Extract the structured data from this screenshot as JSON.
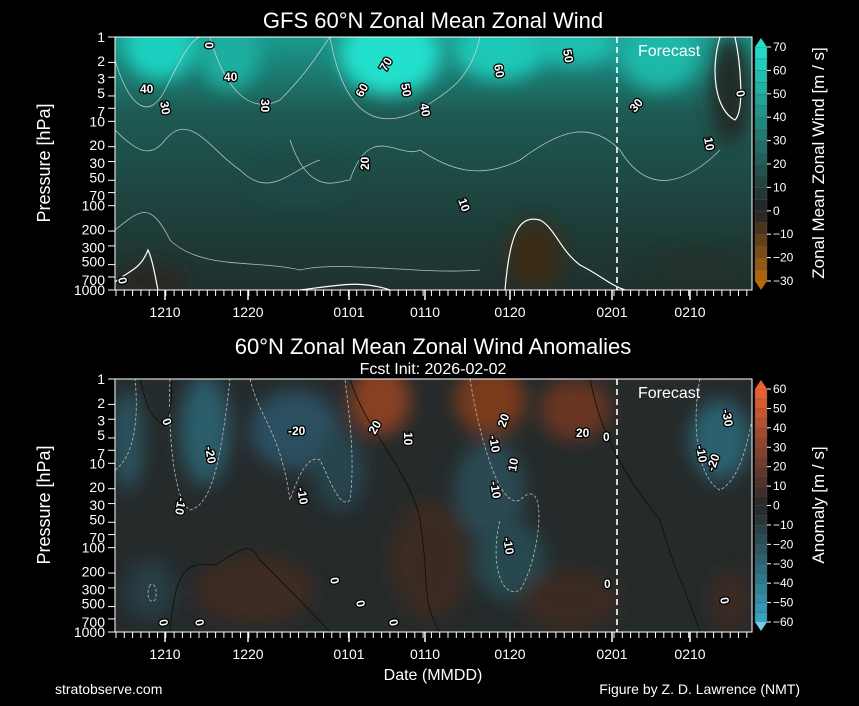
{
  "chart_data": [
    {
      "type": "heatmap",
      "title": "GFS 60°N Zonal Mean Zonal Wind",
      "xlabel": "",
      "ylabel": "Pressure [hPa]",
      "x_tick_labels": [
        "1210",
        "1220",
        "0101",
        "0110",
        "0120",
        "0201",
        "0210"
      ],
      "y_ticks": [
        1,
        2,
        3,
        5,
        7,
        10,
        20,
        30,
        50,
        70,
        100,
        200,
        300,
        500,
        700,
        1000
      ],
      "ylim": [
        1000,
        1
      ],
      "yscale": "log",
      "forecast_label": "Forecast",
      "colorbar": {
        "label": "Zonal Mean Zonal Wind [m / s]",
        "ticks": [
          70,
          60,
          50,
          40,
          30,
          20,
          10,
          0,
          -10,
          -20,
          -30
        ],
        "range": [
          -30,
          70
        ],
        "step": 5,
        "low_color": "#b86a08",
        "zero_color": "#222222",
        "high_color": "#20e0cc"
      },
      "contour_labels": [
        "0",
        "40",
        "30",
        "40",
        "30",
        "60",
        "70",
        "50",
        "40",
        "20",
        "10",
        "60",
        "50",
        "30",
        "0",
        "10",
        "0"
      ]
    },
    {
      "type": "heatmap",
      "title": "60°N Zonal Mean Zonal Wind Anomalies",
      "subtitle": "Fcst Init: 2026-02-02",
      "xlabel": "Date (MMDD)",
      "ylabel": "Pressure [hPa]",
      "x_tick_labels": [
        "1210",
        "1220",
        "0101",
        "0110",
        "0120",
        "0201",
        "0210"
      ],
      "y_ticks": [
        1,
        2,
        3,
        5,
        7,
        10,
        20,
        30,
        50,
        70,
        100,
        200,
        300,
        500,
        700,
        1000
      ],
      "ylim": [
        1000,
        1
      ],
      "yscale": "log",
      "forecast_label": "Forecast",
      "colorbar": {
        "label": "Anomaly [m / s]",
        "ticks": [
          60,
          50,
          40,
          30,
          20,
          10,
          0,
          -10,
          -20,
          -30,
          -40,
          -50,
          -60
        ],
        "range": [
          -60,
          60
        ],
        "step": 5,
        "low_color": "#35a8c8",
        "zero_color": "#262626",
        "high_color": "#f06030"
      },
      "contour_labels": [
        "0",
        "-20",
        "-10",
        "-20",
        "-10",
        "20",
        "10",
        "20",
        "10",
        "-10",
        "-10",
        "-10",
        "20",
        "0",
        "-10",
        "-20",
        "-30",
        "0",
        "0",
        "0",
        "0",
        "0",
        "0",
        "0"
      ]
    }
  ],
  "footer": {
    "left": "stratobserve.com",
    "right": "Figure by Z. D. Lawrence (NMT)"
  }
}
